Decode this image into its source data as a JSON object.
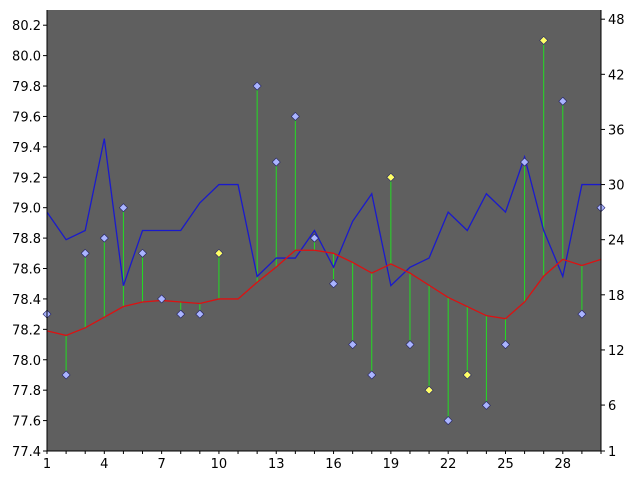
{
  "chart_data": {
    "type": "line",
    "title": "",
    "xlabel": "",
    "ylabel_left": "",
    "ylabel_right": "",
    "x": [
      1,
      2,
      3,
      4,
      5,
      6,
      7,
      8,
      9,
      10,
      11,
      12,
      13,
      14,
      15,
      16,
      17,
      18,
      19,
      20,
      21,
      22,
      23,
      24,
      25,
      26,
      27,
      28,
      29,
      30
    ],
    "x_ticks": [
      1,
      4,
      7,
      10,
      13,
      16,
      19,
      22,
      25,
      28
    ],
    "x_range": [
      1,
      30
    ],
    "y_left_range": [
      77.4,
      80.3
    ],
    "y_left_ticks": [
      77.4,
      77.6,
      77.8,
      78.0,
      78.2,
      78.4,
      78.6,
      78.8,
      79.0,
      79.2,
      79.4,
      79.6,
      79.8,
      80.0,
      80.2
    ],
    "y_left_tick_labels": [
      "77.4",
      "77.6",
      "77.8",
      "78.0",
      "78.2",
      "78.4",
      "78.6",
      "78.8",
      "79.0",
      "79.2",
      "79.4",
      "79.6",
      "79.8",
      "80.0",
      "80.2"
    ],
    "y_right_range": [
      1,
      49
    ],
    "y_right_ticks": [
      1,
      6,
      12,
      18,
      24,
      30,
      36,
      42,
      48
    ],
    "plot_background": "#5f5f5f",
    "grid": false,
    "series": [
      {
        "role": "points",
        "axis": "left",
        "color": "#aab4ff",
        "highlight_color": "#ffff66",
        "values": [
          78.3,
          77.9,
          78.7,
          78.8,
          79.0,
          78.7,
          78.4,
          78.3,
          78.3,
          78.7,
          null,
          79.8,
          79.3,
          79.6,
          78.8,
          78.5,
          78.1,
          77.9,
          79.2,
          78.1,
          77.8,
          77.6,
          77.9,
          77.7,
          78.1,
          79.3,
          80.1,
          79.7,
          78.3,
          79.0
        ],
        "highlighted": [
          10,
          19,
          21,
          23,
          27
        ]
      },
      {
        "role": "moving-average",
        "axis": "left",
        "color": "#dd1111",
        "values": [
          78.19,
          78.16,
          78.21,
          78.28,
          78.35,
          78.38,
          78.39,
          78.38,
          78.37,
          78.4,
          78.4,
          78.51,
          78.61,
          78.72,
          78.72,
          78.7,
          78.64,
          78.57,
          78.63,
          78.57,
          78.49,
          78.41,
          78.35,
          78.29,
          78.27,
          78.38,
          78.55,
          78.66,
          78.62,
          78.66
        ]
      },
      {
        "role": "volume-line",
        "axis": "right",
        "color": "#1a1acc",
        "values": [
          27,
          24,
          25,
          35,
          19,
          25,
          25,
          25,
          28,
          30,
          30,
          20,
          22,
          22,
          25,
          21,
          26,
          29,
          19,
          21,
          22,
          27,
          25,
          29,
          27,
          33,
          25,
          20,
          30,
          30
        ]
      }
    ]
  }
}
